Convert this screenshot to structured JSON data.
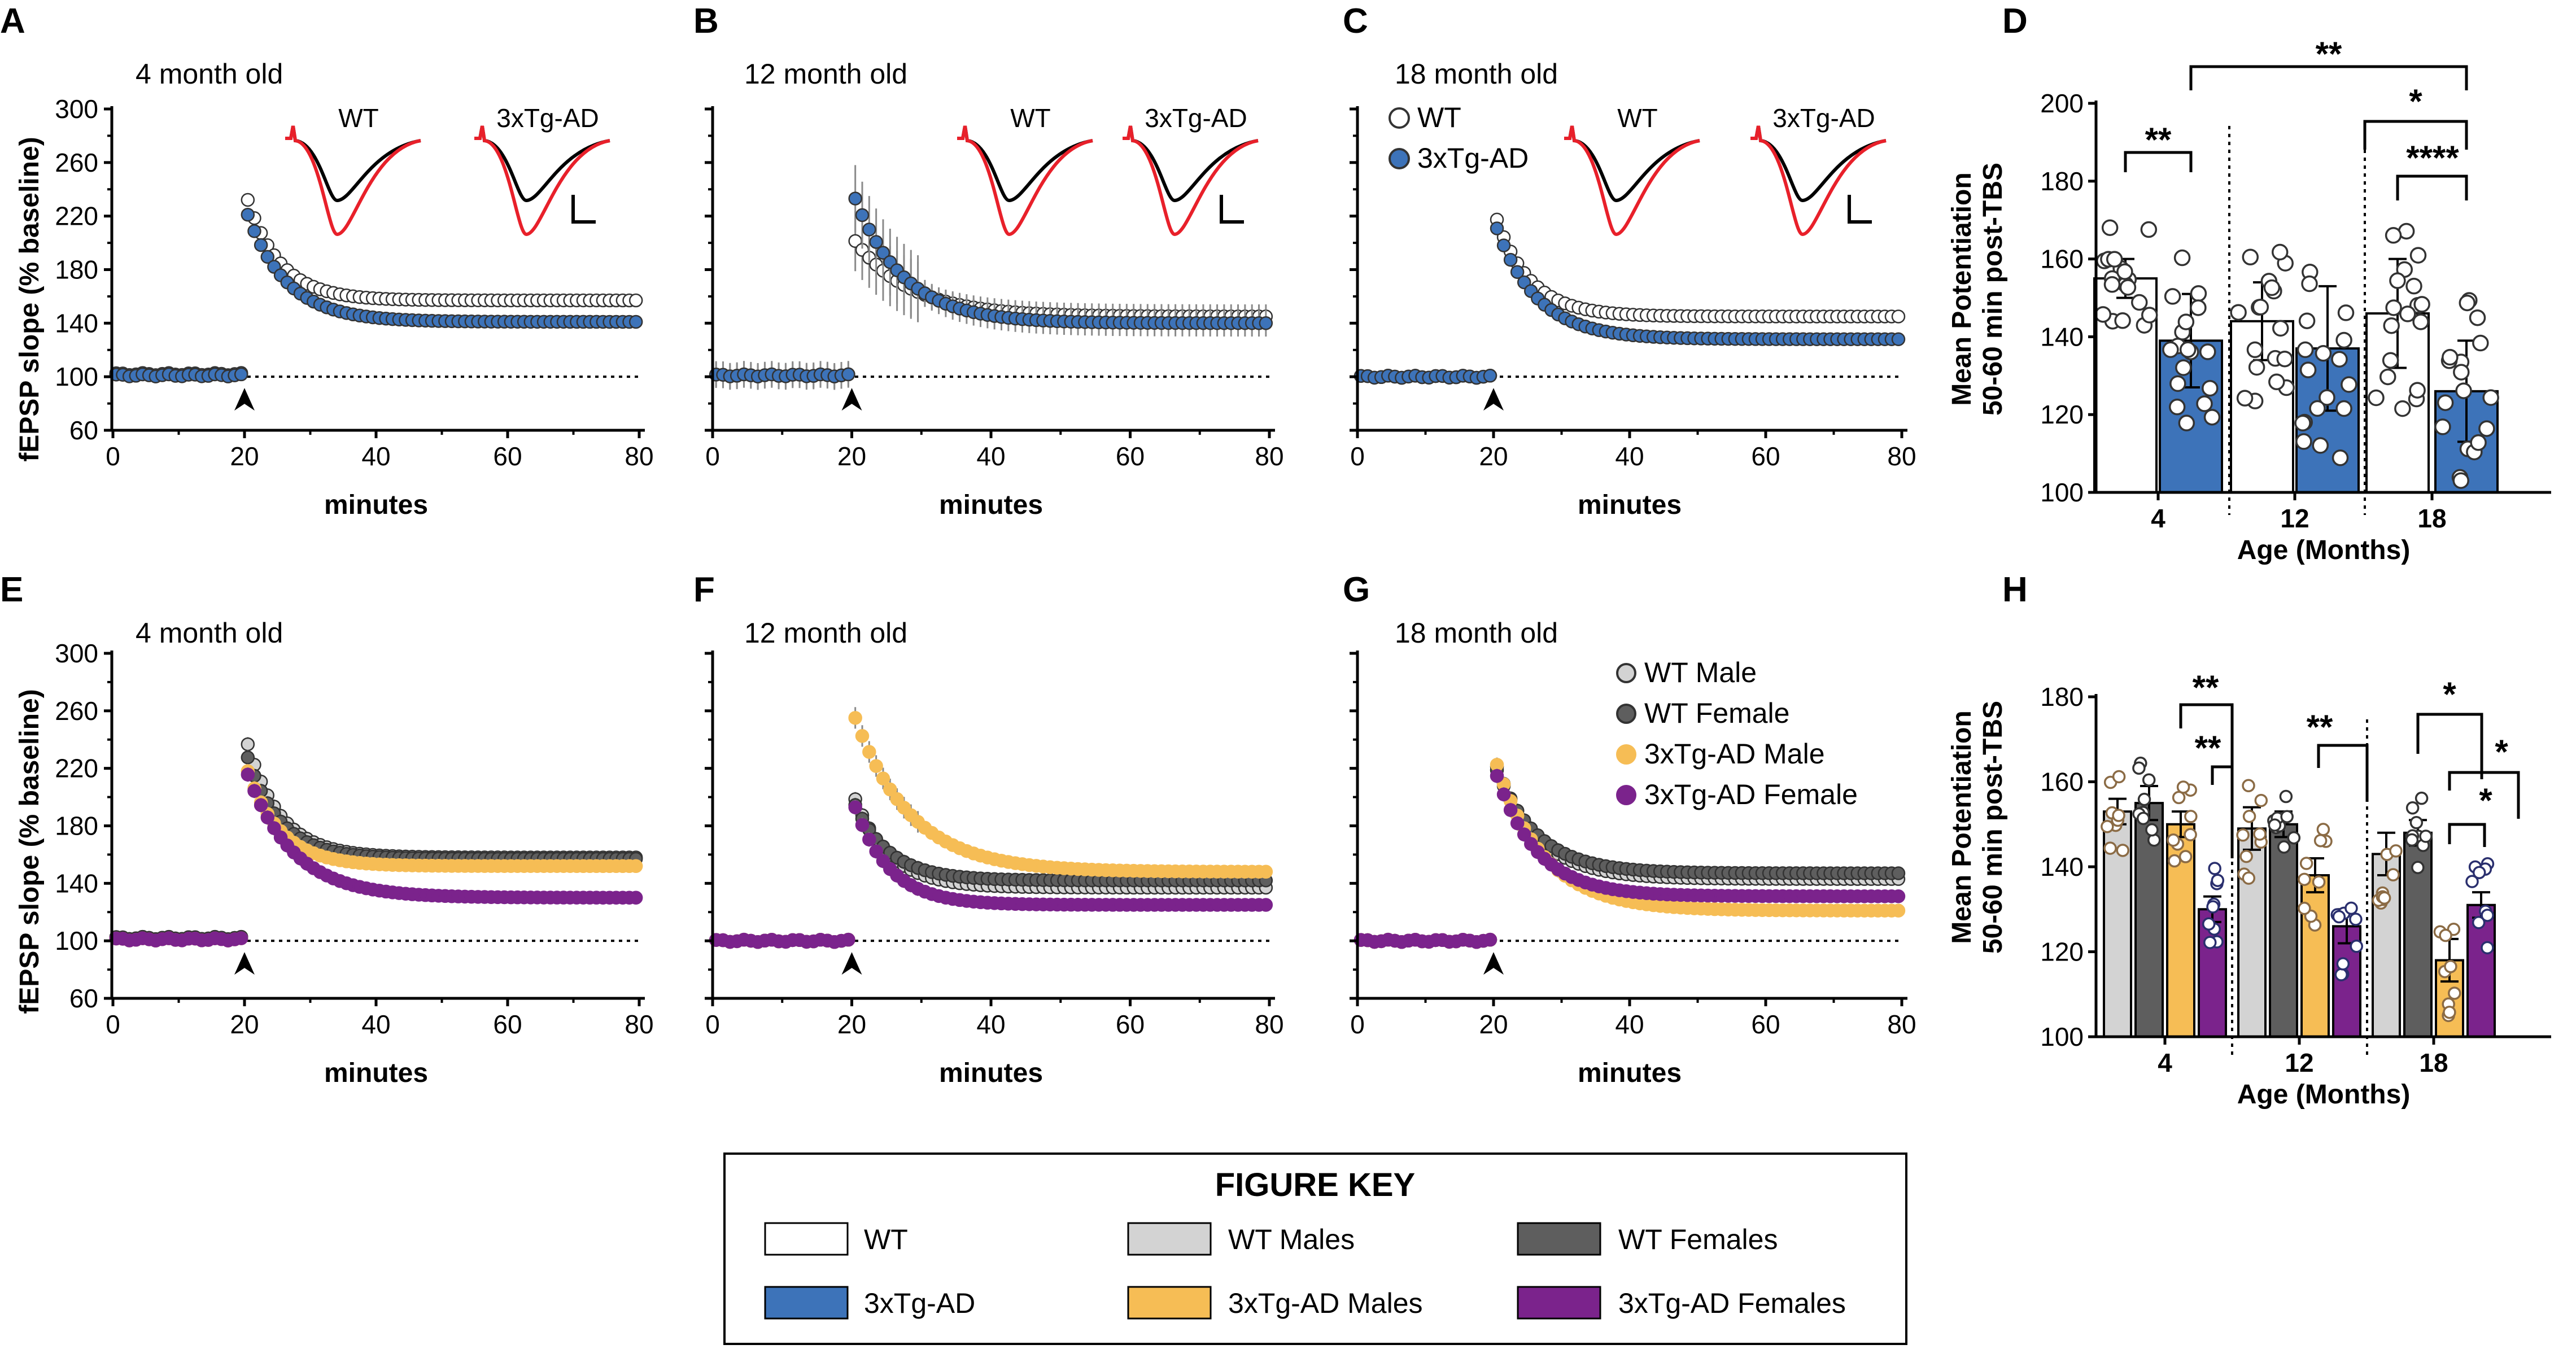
{
  "panel_labels": [
    "A",
    "B",
    "C",
    "D",
    "E",
    "F",
    "G",
    "H"
  ],
  "colors": {
    "wt": "#ffffff",
    "tg": "#3d73b9",
    "wt_male": "#d3d3d3",
    "wt_female": "#5e5e5e",
    "tg_male": "#f6bd55",
    "tg_female": "#7b238c",
    "trace_black": "#000000",
    "trace_red": "#e8202a"
  },
  "chart_data": [
    {
      "panel": "A",
      "type": "scatter",
      "title": "4 month old",
      "xlabel": "minutes",
      "ylabel": "fEPSP slope (% baseline)",
      "xlim": [
        0,
        80
      ],
      "ylim": [
        60,
        300
      ],
      "xticks": [
        "0",
        "20",
        "40",
        "60",
        "80"
      ],
      "yticks": [
        "60",
        "100",
        "140",
        "180",
        "220",
        "260",
        "300"
      ],
      "baseline": 100,
      "arrow_at": 20,
      "trace_labels": [
        "WT",
        "3xTg-AD"
      ],
      "series": [
        {
          "name": "WT",
          "color_key": "wt",
          "pre": 102,
          "peak": 240,
          "plateau": 157,
          "decay": 5,
          "err": 2
        },
        {
          "name": "3xTg-AD",
          "color_key": "tg",
          "pre": 101,
          "peak": 228,
          "plateau": 141,
          "decay": 6,
          "err": 2
        }
      ]
    },
    {
      "panel": "B",
      "type": "scatter",
      "title": "12 month old",
      "xlabel": "minutes",
      "ylabel": "",
      "xlim": [
        0,
        80
      ],
      "ylim": [
        60,
        300
      ],
      "xticks": [
        "0",
        "20",
        "40",
        "60",
        "80"
      ],
      "yticks": [],
      "baseline": 100,
      "arrow_at": 20,
      "trace_labels": [
        "WT",
        "3xTg-AD"
      ],
      "series": [
        {
          "name": "WT",
          "color_key": "wt",
          "pre": 101,
          "peak": 205,
          "plateau": 145,
          "decay": 8,
          "err": 9
        },
        {
          "name": "3xTg-AD",
          "color_key": "tg",
          "pre": 101,
          "peak": 240,
          "plateau": 140,
          "decay": 7,
          "err": 10
        }
      ]
    },
    {
      "panel": "C",
      "type": "scatter",
      "title": "18 month old",
      "xlabel": "minutes",
      "ylabel": "",
      "xlim": [
        0,
        80
      ],
      "ylim": [
        60,
        300
      ],
      "xticks": [
        "0",
        "20",
        "40",
        "60",
        "80"
      ],
      "yticks": [],
      "baseline": 100,
      "arrow_at": 20,
      "trace_labels": [
        "WT",
        "3xTg-AD"
      ],
      "legend": [
        "WT",
        "3xTg-AD"
      ],
      "series": [
        {
          "name": "WT",
          "color_key": "wt",
          "pre": 100,
          "peak": 225,
          "plateau": 145,
          "decay": 5,
          "err": 2
        },
        {
          "name": "3xTg-AD",
          "color_key": "tg",
          "pre": 100,
          "peak": 218,
          "plateau": 128,
          "decay": 6,
          "err": 2
        }
      ]
    },
    {
      "panel": "D",
      "type": "bar",
      "xlabel": "Age (Months)",
      "ylabel_lines": [
        "Mean Potentiation",
        "50-60 min post-TBS"
      ],
      "ylim": [
        100,
        200
      ],
      "yticks": [
        "100",
        "120",
        "140",
        "160",
        "180",
        "200"
      ],
      "categories": [
        "4",
        "12",
        "18"
      ],
      "series": [
        {
          "name": "WT",
          "color_key": "wt",
          "values": [
            155,
            144,
            146
          ],
          "err": [
            5,
            10,
            14
          ]
        },
        {
          "name": "3xTg-AD",
          "color_key": "tg",
          "values": [
            139,
            137,
            126
          ],
          "err": [
            12,
            16,
            13
          ]
        }
      ],
      "significance": [
        "**",
        "**",
        "*",
        "****"
      ]
    },
    {
      "panel": "E",
      "type": "scatter",
      "title": "4 month old",
      "xlabel": "minutes",
      "ylabel": "fEPSP slope (% baseline)",
      "xlim": [
        0,
        80
      ],
      "ylim": [
        60,
        300
      ],
      "xticks": [
        "0",
        "20",
        "40",
        "60",
        "80"
      ],
      "yticks": [
        "60",
        "100",
        "140",
        "180",
        "220",
        "260",
        "300"
      ],
      "baseline": 100,
      "arrow_at": 20,
      "series": [
        {
          "name": "WT Male",
          "color_key": "wt_male",
          "pre": 102,
          "peak": 245,
          "plateau": 158,
          "decay": 5,
          "err": 2
        },
        {
          "name": "WT Female",
          "color_key": "wt_female",
          "pre": 102,
          "peak": 235,
          "plateau": 157,
          "decay": 5,
          "err": 2
        },
        {
          "name": "3xTg-AD Male",
          "color_key": "tg_male",
          "pre": 101,
          "peak": 225,
          "plateau": 152,
          "decay": 5,
          "err": 2
        },
        {
          "name": "3xTg-AD Female",
          "color_key": "tg_female",
          "pre": 101,
          "peak": 222,
          "plateau": 130,
          "decay": 7,
          "err": 2
        }
      ]
    },
    {
      "panel": "F",
      "type": "scatter",
      "title": "12 month old",
      "xlabel": "minutes",
      "ylabel": "",
      "xlim": [
        0,
        80
      ],
      "ylim": [
        60,
        300
      ],
      "xticks": [
        "0",
        "20",
        "40",
        "60",
        "80"
      ],
      "yticks": [],
      "baseline": 100,
      "arrow_at": 20,
      "series": [
        {
          "name": "WT Male",
          "color_key": "wt_male",
          "pre": 100,
          "peak": 205,
          "plateau": 137,
          "decay": 5,
          "err": 2
        },
        {
          "name": "WT Female",
          "color_key": "wt_female",
          "pre": 100,
          "peak": 200,
          "plateau": 142,
          "decay": 5,
          "err": 2
        },
        {
          "name": "3xTg-AD Male",
          "color_key": "tg_male",
          "pre": 100,
          "peak": 262,
          "plateau": 148,
          "decay": 8,
          "err": 3
        },
        {
          "name": "3xTg-AD Female",
          "color_key": "tg_female",
          "pre": 100,
          "peak": 200,
          "plateau": 125,
          "decay": 5,
          "err": 2
        }
      ]
    },
    {
      "panel": "G",
      "type": "scatter",
      "title": "18 month old",
      "xlabel": "minutes",
      "ylabel": "",
      "xlim": [
        0,
        80
      ],
      "ylim": [
        60,
        300
      ],
      "xticks": [
        "0",
        "20",
        "40",
        "60",
        "80"
      ],
      "yticks": [],
      "baseline": 100,
      "arrow_at": 20,
      "legend": [
        "WT Male",
        "WT Female",
        "3xTg-AD Male",
        "3xTg-AD Female"
      ],
      "series": [
        {
          "name": "WT Male",
          "color_key": "wt_male",
          "pre": 100,
          "peak": 228,
          "plateau": 143,
          "decay": 6,
          "err": 2
        },
        {
          "name": "WT Female",
          "color_key": "wt_female",
          "pre": 100,
          "peak": 225,
          "plateau": 147,
          "decay": 6,
          "err": 2
        },
        {
          "name": "3xTg-AD Male",
          "color_key": "tg_male",
          "pre": 100,
          "peak": 230,
          "plateau": 121,
          "decay": 7,
          "err": 2
        },
        {
          "name": "3xTg-AD Female",
          "color_key": "tg_female",
          "pre": 100,
          "peak": 222,
          "plateau": 131,
          "decay": 6,
          "err": 2
        }
      ]
    },
    {
      "panel": "H",
      "type": "bar",
      "xlabel": "Age (Months)",
      "ylabel_lines": [
        "Mean Potentiation",
        "50-60 min post-TBS"
      ],
      "ylim": [
        100,
        180
      ],
      "yticks": [
        "100",
        "120",
        "140",
        "160",
        "180"
      ],
      "categories": [
        "4",
        "12",
        "18"
      ],
      "series": [
        {
          "name": "WT Male",
          "color_key": "wt_male",
          "values": [
            153,
            149,
            143
          ],
          "err": [
            3,
            5,
            5
          ]
        },
        {
          "name": "WT Female",
          "color_key": "wt_female",
          "values": [
            155,
            150,
            148
          ],
          "err": [
            4,
            3,
            3
          ]
        },
        {
          "name": "3xTg-AD Male",
          "color_key": "tg_male",
          "values": [
            150,
            138,
            118
          ],
          "err": [
            3,
            4,
            5
          ]
        },
        {
          "name": "3xTg-AD Female",
          "color_key": "tg_female",
          "values": [
            130,
            126,
            131
          ],
          "err": [
            3,
            4,
            3
          ]
        }
      ],
      "significance": [
        "**",
        "**",
        "**",
        "*",
        "*",
        "*"
      ]
    }
  ],
  "figure_key": {
    "title": "FIGURE KEY",
    "items": [
      {
        "label": "WT",
        "color_key": "wt"
      },
      {
        "label": "WT Males",
        "color_key": "wt_male"
      },
      {
        "label": "WT Females",
        "color_key": "wt_female"
      },
      {
        "label": "3xTg-AD",
        "color_key": "tg"
      },
      {
        "label": "3xTg-AD Males",
        "color_key": "tg_male"
      },
      {
        "label": "3xTg-AD Females",
        "color_key": "tg_female"
      }
    ]
  }
}
